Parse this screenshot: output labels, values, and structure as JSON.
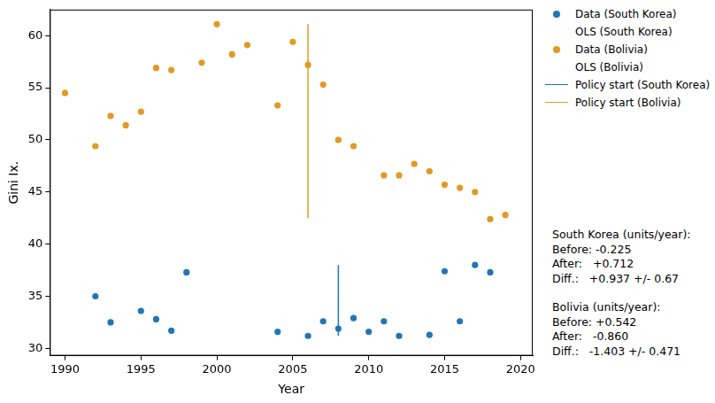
{
  "chart_data": {
    "type": "scatter",
    "x_label": "Year",
    "y_label": "Gini Ix.",
    "xlim": [
      1989,
      2020.8
    ],
    "xticks": [
      1990,
      1995,
      2000,
      2005,
      2010,
      2015,
      2020
    ],
    "ylim": [
      29.3,
      62.5
    ],
    "yticks": [
      30,
      35,
      40,
      45,
      50,
      55,
      60
    ],
    "grid": false,
    "legend": "outside right",
    "series": [
      {
        "name": "Data (South Korea)",
        "type": "scatter",
        "color": "#2276b5",
        "marker": "circle",
        "x": [
          1992,
          1993,
          1995,
          1996,
          1997,
          1998,
          2004,
          2006,
          2007,
          2008,
          2009,
          2010,
          2011,
          2012,
          2014,
          2015,
          2016,
          2017,
          2018
        ],
        "values": [
          35.0,
          32.5,
          33.6,
          32.8,
          31.7,
          37.3,
          31.6,
          31.2,
          32.6,
          31.9,
          32.9,
          31.6,
          32.6,
          31.2,
          31.3,
          37.4,
          32.6,
          38.0,
          37.3
        ]
      },
      {
        "name": "OLS (South Korea)",
        "type": "line",
        "color": "#2276b5",
        "line_style": "none",
        "x": [],
        "values": []
      },
      {
        "name": "Data (Bolivia)",
        "type": "scatter",
        "color": "#e09a25",
        "marker": "circle",
        "x": [
          1990,
          1992,
          1993,
          1994,
          1995,
          1996,
          1997,
          1999,
          2000,
          2001,
          2002,
          2004,
          2005,
          2006,
          2007,
          2008,
          2009,
          2011,
          2012,
          2013,
          2014,
          2015,
          2016,
          2017,
          2018,
          2019
        ],
        "values": [
          54.5,
          49.4,
          52.3,
          51.4,
          52.7,
          56.9,
          56.7,
          57.4,
          61.1,
          58.2,
          59.1,
          53.3,
          59.4,
          57.2,
          55.3,
          50.0,
          49.4,
          46.6,
          46.6,
          47.7,
          47.0,
          45.7,
          45.4,
          45.0,
          42.4,
          42.8
        ]
      },
      {
        "name": "OLS (Bolivia)",
        "type": "line",
        "color": "#e09a25",
        "line_style": "none",
        "x": [],
        "values": []
      },
      {
        "name": "Policy start (South Korea)",
        "type": "line",
        "color": "#2276b5",
        "line_style": "solid",
        "x": [
          2008,
          2008
        ],
        "values": [
          31.2,
          38.0
        ]
      },
      {
        "name": "Policy start (Bolivia)",
        "type": "line",
        "color": "#e09a25",
        "line_style": "solid",
        "x": [
          2006,
          2006
        ],
        "values": [
          42.5,
          61.1
        ]
      }
    ],
    "annotations": [
      {
        "lines": [
          "South Korea (units/year):",
          "Before: -0.225",
          "After:   +0.712",
          "Diff.:   +0.937 +/- 0.67"
        ]
      },
      {
        "lines": [
          "Bolivia (units/year):",
          "Before: +0.542",
          "After:   -0.860",
          "Diff.:   -1.403 +/- 0.471"
        ]
      }
    ]
  }
}
